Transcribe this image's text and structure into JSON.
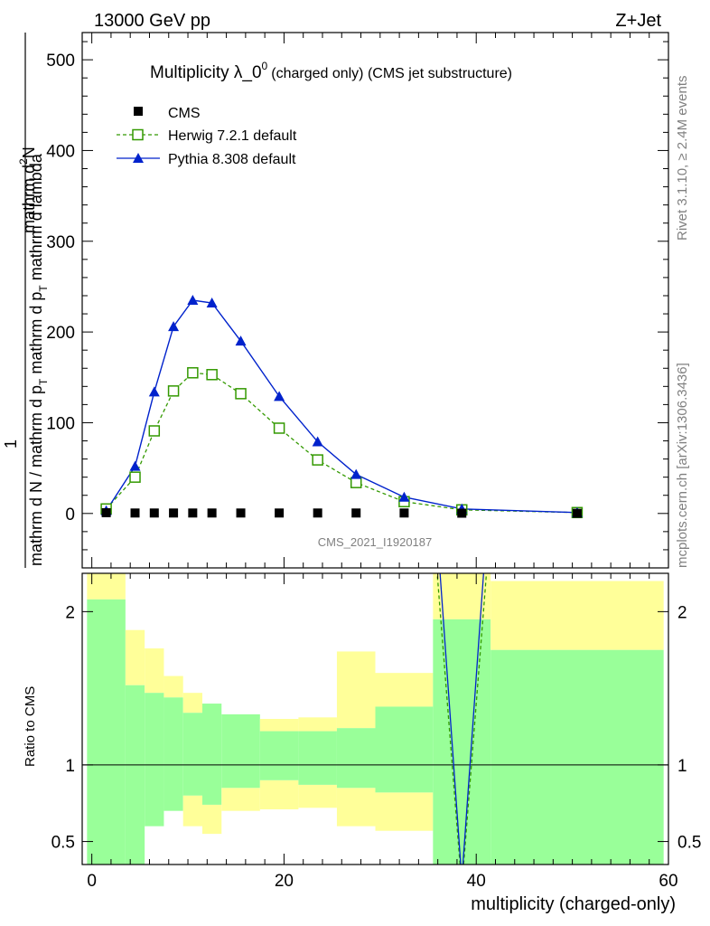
{
  "header": {
    "energy_label": "13000 GeV pp",
    "process_label": "Z+Jet"
  },
  "side_labels": {
    "rivet": "Rivet 3.1.10, ≥ 2.4M events",
    "mcplots": "mcplots.cern.ch [arXiv:1306.3436]"
  },
  "chart_data": [
    {
      "type": "line",
      "panel": "main",
      "title_main": "Multiplicity λ_0",
      "title_sup": "0",
      "title_suffix": "(charged only) (CMS jet substructure)",
      "ylabel_parts": {
        "numerator": "mathrm d",
        "numerator_sup": "2",
        "numerator_tail": "N",
        "prefix": "1",
        "denominator": "mathrm d N / mathrm d p",
        "denominator_sub": "T",
        "denominator_tail": " mathrm d p",
        "denominator_sub2": "T",
        "denominator_tail2": " mathrm d lambda"
      },
      "xlim": [
        -1,
        60
      ],
      "ylim": [
        -60,
        530
      ],
      "yticks": [
        0,
        100,
        200,
        300,
        400,
        500
      ],
      "watermark": "CMS_2021_I1920187",
      "legend_position": "top-left",
      "series": [
        {
          "name": "CMS",
          "style": "black squares",
          "color": "#000000",
          "x": [
            1.5,
            4.5,
            6.5,
            8.5,
            10.5,
            12.5,
            15.5,
            19.5,
            23.5,
            27.5,
            32.5,
            38.5,
            50.5
          ],
          "y": [
            0.8,
            0.5,
            0.5,
            0.5,
            0.5,
            0.5,
            0.5,
            0.5,
            0.5,
            0.5,
            0.5,
            0.3,
            0.2
          ]
        },
        {
          "name": "Herwig 7.2.1 default",
          "style": "dashed open squares",
          "color": "#339900",
          "x": [
            1.5,
            4.5,
            6.5,
            8.5,
            10.5,
            12.5,
            15.5,
            19.5,
            23.5,
            27.5,
            32.5,
            38.5,
            50.5
          ],
          "y": [
            5,
            40,
            91,
            135,
            155,
            153,
            132,
            94,
            59,
            34,
            13,
            4,
            1
          ]
        },
        {
          "name": "Pythia 8.308 default",
          "style": "solid filled triangles",
          "color": "#0022cc",
          "x": [
            1.5,
            4.5,
            6.5,
            8.5,
            10.5,
            12.5,
            15.5,
            19.5,
            23.5,
            27.5,
            32.5,
            38.5,
            50.5
          ],
          "y": [
            3,
            52,
            134,
            206,
            235,
            232,
            190,
            129,
            79,
            43,
            18,
            5,
            1
          ]
        }
      ]
    },
    {
      "type": "area",
      "panel": "ratio",
      "ylabel": "Ratio to CMS",
      "xlabel": "multiplicity (charged-only)",
      "xlim": [
        -1,
        60
      ],
      "ylim": [
        0.35,
        2.25
      ],
      "yticks": [
        0.5,
        1,
        2
      ],
      "ytick_labels": [
        "0.5",
        "1",
        "2"
      ],
      "xticks": [
        0,
        20,
        40,
        60
      ],
      "reference_line": 1,
      "bands": {
        "edges": [
          -0.5,
          3.5,
          5.5,
          7.5,
          9.5,
          11.5,
          13.5,
          17.5,
          21.5,
          25.5,
          29.5,
          35.5,
          41.5,
          59.5
        ],
        "green_low": [
          0.35,
          0.35,
          0.6,
          0.7,
          0.8,
          0.74,
          0.85,
          0.9,
          0.87,
          0.85,
          0.82,
          0.35,
          0.35
        ],
        "green_high": [
          2.08,
          1.52,
          1.47,
          1.44,
          1.34,
          1.4,
          1.33,
          1.22,
          1.22,
          1.24,
          1.38,
          1.95,
          1.75
        ],
        "yellow_low": [
          0.35,
          0.35,
          0.35,
          0.35,
          0.35,
          0.35,
          0.35,
          0.35,
          0.35,
          0.35,
          0.35,
          0.35,
          0.35
        ],
        "yellow_high": [
          2.25,
          1.88,
          1.76,
          1.58,
          1.47,
          1.28,
          1.28,
          1.3,
          1.31,
          1.74,
          1.6,
          2.25,
          2.2
        ],
        "yellow_gaps": [
          [
            0.35,
            0.53
          ],
          [
            0.35,
            0.53
          ],
          [
            0.35,
            0.61
          ],
          [
            0.8,
            0.8
          ],
          [
            0.35,
            0.6
          ],
          [
            0.35,
            0.55
          ],
          [
            0.35,
            0.7
          ],
          [
            0.35,
            0.71
          ],
          [
            0.35,
            0.72
          ],
          [
            0.35,
            0.6
          ],
          [
            0.35,
            0.57
          ],
          [
            0.35,
            0.35
          ],
          [
            0.35,
            0.35
          ]
        ]
      },
      "series": [
        {
          "name": "Herwig 7.2.1 default",
          "color": "#339900",
          "x": [
            35.5,
            38.5,
            41.5
          ],
          "y": [
            2.6,
            0.2,
            2.6
          ]
        },
        {
          "name": "Pythia 8.308 default",
          "color": "#0022cc",
          "x": [
            35.5,
            38.5,
            41.5
          ],
          "y": [
            2.9,
            0.25,
            2.9
          ]
        }
      ]
    }
  ]
}
